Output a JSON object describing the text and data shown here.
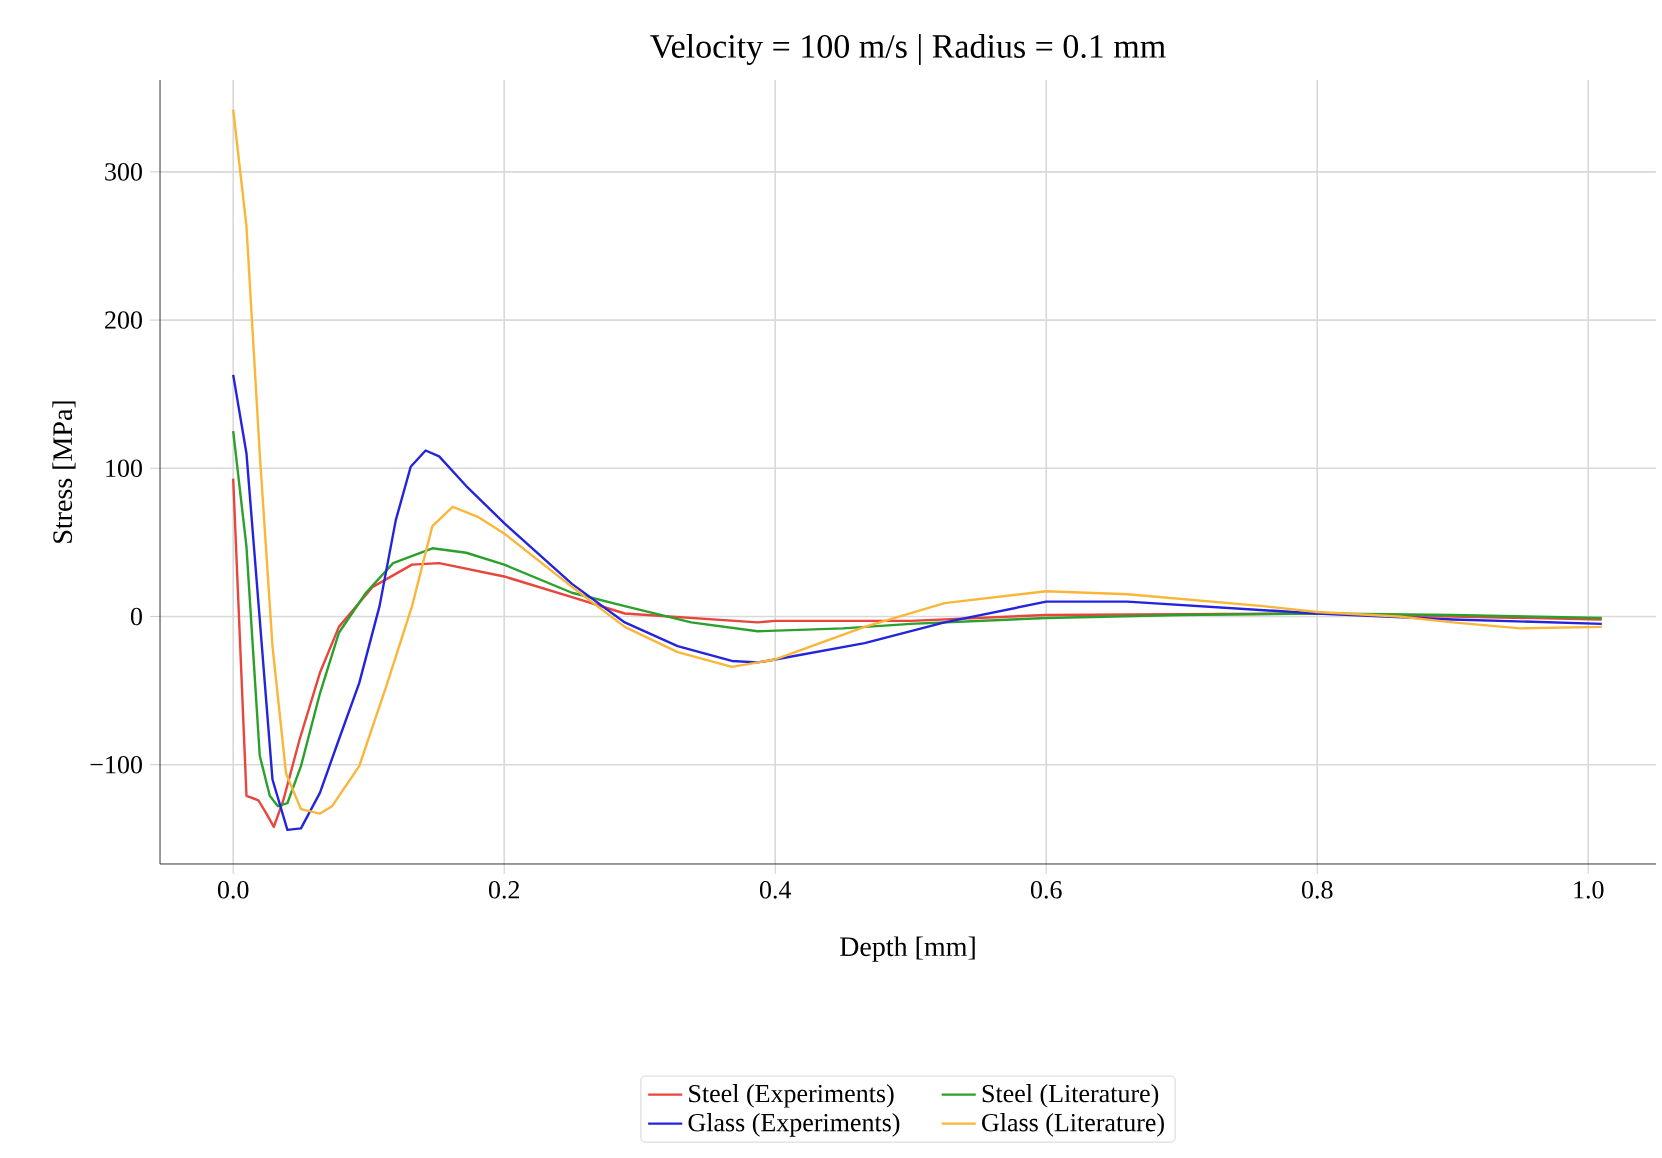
{
  "chart_data": {
    "type": "line",
    "title": "Velocity = 100 m/s | Radius = 0.1 mm",
    "xlabel": "Depth [mm]",
    "ylabel": "Stress [MPa]",
    "xlim": [
      -0.054,
      1.05
    ],
    "ylim": [
      -167,
      362
    ],
    "xticks": [
      {
        "value": 0,
        "label": "0.0"
      },
      {
        "value": 0.2,
        "label": "0.2"
      },
      {
        "value": 0.4,
        "label": "0.4"
      },
      {
        "value": 0.6,
        "label": "0.6"
      },
      {
        "value": 0.8,
        "label": "0.8"
      },
      {
        "value": 1.0,
        "label": "1.0"
      }
    ],
    "yticks": [
      {
        "value": -100,
        "label": "−100"
      },
      0,
      100,
      200,
      300
    ],
    "grid": true,
    "legend": "bottom",
    "marker": "none",
    "line_style": "solid",
    "series": [
      {
        "name": "Steel (Experiments)",
        "color": "#e8453c",
        "x": [
          0,
          0.0098,
          0.0186,
          0.0245,
          0.03,
          0.037,
          0.049,
          0.064,
          0.078,
          0.103,
          0.132,
          0.152,
          0.2,
          0.25,
          0.289,
          0.387,
          0.4,
          0.5,
          0.6,
          0.8,
          0.9,
          1.01
        ],
        "values": [
          93,
          -121,
          -124,
          -133,
          -142,
          -124,
          -83,
          -38,
          -7,
          20,
          35,
          36,
          27,
          13,
          2,
          -4,
          -3,
          -3,
          1,
          2,
          0,
          -2
        ]
      },
      {
        "name": "Steel (Literature)",
        "color": "#2ca02c",
        "x": [
          0,
          0.0098,
          0.0196,
          0.027,
          0.033,
          0.04,
          0.05,
          0.064,
          0.078,
          0.098,
          0.118,
          0.147,
          0.172,
          0.2,
          0.25,
          0.289,
          0.338,
          0.387,
          0.45,
          0.5,
          0.6,
          0.7,
          0.8,
          0.9,
          1.01
        ],
        "values": [
          125,
          47,
          -94,
          -121,
          -128,
          -126,
          -101,
          -52,
          -11,
          16,
          36,
          46,
          43,
          35,
          16,
          7,
          -4,
          -10,
          -8,
          -5,
          -1,
          1,
          2,
          1,
          -1
        ]
      },
      {
        "name": "Glass (Experiments)",
        "color": "#2424dd",
        "x": [
          0,
          0.0098,
          0.0196,
          0.029,
          0.04,
          0.05,
          0.064,
          0.078,
          0.093,
          0.108,
          0.12,
          0.131,
          0.142,
          0.152,
          0.172,
          0.2,
          0.25,
          0.289,
          0.328,
          0.368,
          0.387,
          0.4,
          0.466,
          0.525,
          0.6,
          0.66,
          0.8,
          0.9,
          1.01
        ],
        "values": [
          163,
          110,
          -2,
          -110,
          -144,
          -143,
          -119,
          -83,
          -45,
          7,
          65,
          101,
          112,
          108,
          88,
          63,
          22,
          -4,
          -20,
          -30,
          -31,
          -29,
          -18,
          -4,
          10,
          10,
          2,
          -2,
          -5
        ]
      },
      {
        "name": "Glass (Literature)",
        "color": "#fbb63a",
        "x": [
          0,
          0.0098,
          0.0196,
          0.029,
          0.039,
          0.05,
          0.064,
          0.073,
          0.093,
          0.113,
          0.132,
          0.147,
          0.162,
          0.181,
          0.2,
          0.25,
          0.289,
          0.328,
          0.368,
          0.4,
          0.466,
          0.525,
          0.6,
          0.66,
          0.76,
          0.8,
          0.86,
          0.9,
          0.95,
          1.01
        ],
        "values": [
          342,
          263,
          110,
          -20,
          -106,
          -130,
          -133,
          -128,
          -101,
          -47,
          7,
          61,
          74,
          67,
          56,
          20,
          -7,
          -24,
          -34,
          -29,
          -7,
          9,
          17,
          15,
          7,
          3,
          0,
          -4,
          -8,
          -7
        ]
      }
    ]
  }
}
